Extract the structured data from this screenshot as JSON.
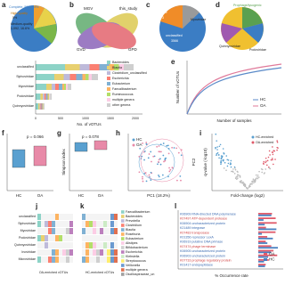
{
  "a": {
    "label": "a",
    "complete": "Complete, 502, 7.8%",
    "high": "High-quality",
    "high_pct": "5%",
    "medium": "Medium-quality",
    "medium_n": "1,092, 16.6%"
  },
  "b": {
    "label": "b",
    "sets": [
      "MGV",
      "this_study",
      "GVD",
      "GPD"
    ]
  },
  "c": {
    "label": "c",
    "sipho": "Siphoviridae",
    "sipho_n": "1673",
    "myo": "Myoviridae",
    "unc": "unclassified",
    "unc_n": "3566"
  },
  "d": {
    "label": "d",
    "proph": "Prophage/lysogenic",
    "quin": "Quinnyoviridae",
    "podo": "Podoviridae"
  },
  "bars": {
    "families": [
      "unclassified",
      "Siphoviridae",
      "Myoviridae",
      "Podoviridae",
      "Quinnyoviridae"
    ],
    "legend": [
      "Bacteroides",
      "Blautia",
      "Clostridium_unclassified",
      "Escherichia",
      "Eubacterium",
      "Faecalibacterium",
      "Ruminococcus",
      "multiple genera",
      "other genera"
    ],
    "xticks": [
      "0",
      "500",
      "1000",
      "1500",
      "2000"
    ],
    "xlabel": "No. of vOTUs"
  },
  "e": {
    "label": "e",
    "ylabel": "Number of vOTUs",
    "xlabel": "Number of samples",
    "legend": [
      "HC",
      "OA"
    ]
  },
  "f": {
    "label": "f",
    "p": "p = 0.066",
    "groups": [
      "HC",
      "OA"
    ]
  },
  "g": {
    "label": "g",
    "p": "p = 0.078",
    "ylabel": "Simpson index",
    "groups": [
      "HC",
      "OA"
    ]
  },
  "h": {
    "label": "h",
    "legend": [
      "HC",
      "OA"
    ],
    "xlabel": "PC1 (18.2%)",
    "ylabel": "PC2"
  },
  "i": {
    "label": "i",
    "legend": [
      "HC-enriched",
      "OA-enriched"
    ],
    "ylabel": "q-value (-log10)",
    "xlabel": "Fold-change (log2)"
  },
  "j": {
    "label": "j",
    "families": [
      "unclassified",
      "Siphoviridae",
      "Myoviridae",
      "Podoviridae",
      "Quinnyoviridae",
      "Inoviridae",
      "Microviridae"
    ],
    "xlabel": "OA-enriched vOTUs"
  },
  "k": {
    "label": "k",
    "xlabel": "HC-enriched vOTUs",
    "legend": [
      "Faecalibacterium",
      "Bacteroides",
      "Prevotella",
      "Clostridium",
      "Blautia",
      "Roseburia",
      "Eubacterium",
      "Alistipes",
      "Bifidobacterium",
      "Escherichia",
      "Klebsiella",
      "Streptococcus",
      "Veillonella",
      "multiple genera",
      "Oscillospiraceae_un"
    ]
  },
  "l": {
    "label": "l",
    "terms": [
      "K06909 RNA-directed DNA polymerase",
      "K07497 ATP-dependent protease",
      "K06904 uncharacterized protein",
      "K21489 integrase",
      "K07483 transposase",
      "K01356 repressor LexA",
      "K06919 putative DNA primase",
      "K07474 phage terminase",
      "K06905 uncharacterized protein",
      "K06903 uncharacterized protein",
      "K07733 prophage regulatory protein",
      "K01417 endopeptidase"
    ],
    "legend": [
      "OA",
      "HC"
    ],
    "xlabel": "% Occurrence rate"
  }
}
